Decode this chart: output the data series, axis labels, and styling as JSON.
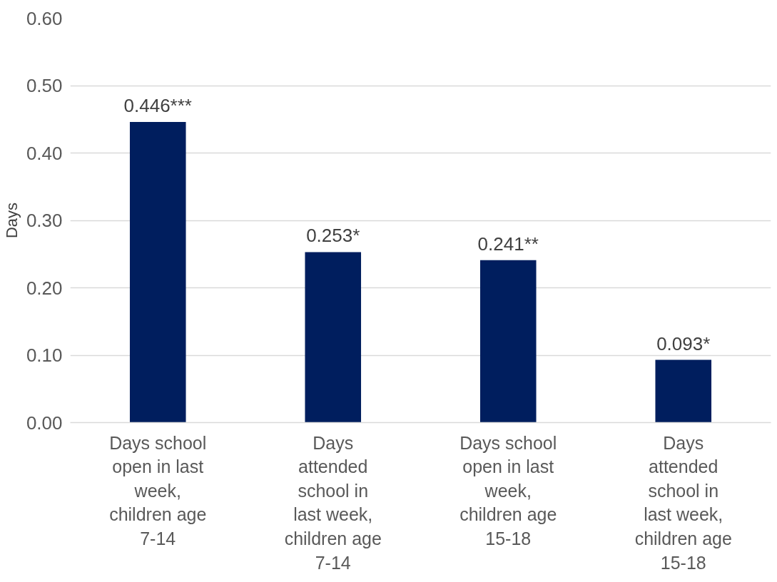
{
  "chart_data": {
    "type": "bar",
    "ylabel": "Days",
    "categories": [
      "Days school open in last week, children age 7-14",
      "Days attended school in last week, children age 7-14",
      "Days school open in last week, children age 15-18",
      "Days attended school in last week, children age 15-18"
    ],
    "values": [
      0.446,
      0.253,
      0.241,
      0.093
    ],
    "value_labels": [
      "0.446***",
      "0.253*",
      "0.241**",
      "0.093*"
    ],
    "color": "#001e5e",
    "ylim": [
      0,
      0.6
    ],
    "yticks": [
      {
        "value": 0,
        "label": "0.00"
      },
      {
        "value": 0.1,
        "label": "0.10"
      },
      {
        "value": 0.2,
        "label": "0.20"
      },
      {
        "value": 0.3,
        "label": "0.30"
      },
      {
        "value": 0.4,
        "label": "0.40"
      },
      {
        "value": 0.5,
        "label": "0.50"
      },
      {
        "value": 0.6,
        "label": "0.60"
      }
    ],
    "grid": "y"
  }
}
